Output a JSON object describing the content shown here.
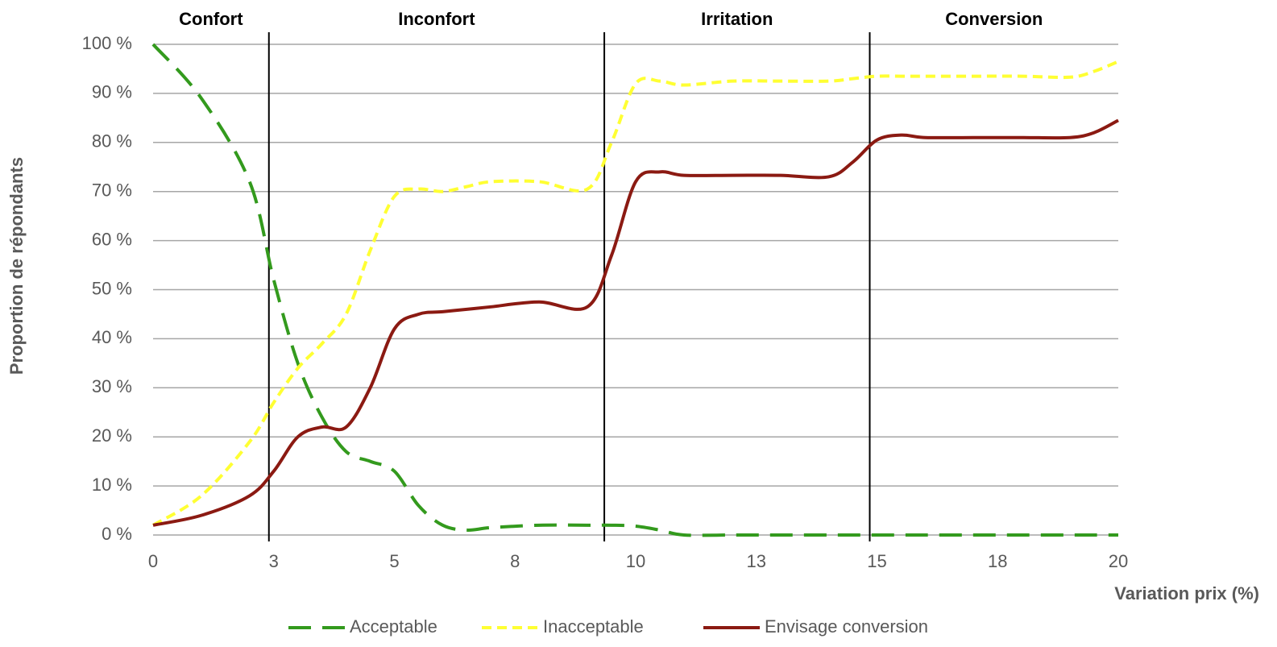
{
  "chart_data": {
    "type": "line",
    "y_label": "Proportion de répondants",
    "x_label": "Variation prix (%)",
    "regions": [
      "Confort",
      "Inconfort",
      "Irritation",
      "Conversion"
    ],
    "dividers": [
      2.4,
      9.35,
      14.85
    ],
    "x": [
      0,
      1,
      2,
      2.5,
      3,
      3.5,
      4,
      4.5,
      5,
      5.5,
      6,
      6.5,
      7,
      8,
      9,
      9.5,
      10,
      10.5,
      11,
      12,
      13,
      14,
      14.5,
      15,
      15.5,
      16,
      17,
      18,
      19,
      19.5,
      20
    ],
    "series": [
      {
        "name": "Acceptable",
        "color": "#339a1d",
        "dash": "28 14",
        "values": [
          100,
          89,
          72,
          52,
          35,
          24,
          17,
          15,
          13,
          6,
          2,
          1,
          1.5,
          2,
          2,
          2,
          1.8,
          1,
          0,
          0,
          0,
          0,
          0,
          0,
          0,
          0,
          0,
          0,
          0,
          0,
          0
        ]
      },
      {
        "name": "Inacceptable",
        "color": "#ffff33",
        "dash": "12 7",
        "values": [
          2,
          8,
          19,
          27,
          34,
          39,
          45,
          58,
          69,
          70.5,
          70,
          71,
          72,
          72,
          70.5,
          80,
          92,
          92.5,
          91.7,
          92.5,
          92.5,
          92.5,
          93,
          93.5,
          93.5,
          93.5,
          93.5,
          93.5,
          93.3,
          94.5,
          96.5
        ]
      },
      {
        "name": "Envisage conversion",
        "color": "#8b1a12",
        "dash": "none",
        "values": [
          2,
          4,
          8,
          13,
          20,
          22,
          22,
          30,
          42,
          45,
          45.5,
          46,
          46.5,
          47.5,
          46.5,
          57,
          72,
          74,
          73.3,
          73.3,
          73.3,
          73,
          76,
          80.5,
          81.5,
          81,
          81,
          81,
          81,
          82,
          84.5
        ]
      }
    ],
    "xlim": [
      0,
      20
    ],
    "xticks": [
      0,
      {
        "value": 2.5,
        "label": "3"
      },
      5,
      {
        "value": 7.5,
        "label": "8"
      },
      10,
      {
        "value": 12.5,
        "label": "13"
      },
      15,
      {
        "value": 17.5,
        "label": "18"
      },
      20
    ],
    "ylim": [
      0,
      100
    ],
    "yticks": [
      {
        "value": 0,
        "label": "0 %"
      },
      {
        "value": 10,
        "label": "10 %"
      },
      {
        "value": 20,
        "label": "20 %"
      },
      {
        "value": 30,
        "label": "30 %"
      },
      {
        "value": 40,
        "label": "40 %"
      },
      {
        "value": 50,
        "label": "50 %"
      },
      {
        "value": 60,
        "label": "60 %"
      },
      {
        "value": 70,
        "label": "70 %"
      },
      {
        "value": 80,
        "label": "80 %"
      },
      {
        "value": 90,
        "label": "90 %"
      },
      {
        "value": 100,
        "label": "100 %"
      }
    ],
    "grid": true
  }
}
